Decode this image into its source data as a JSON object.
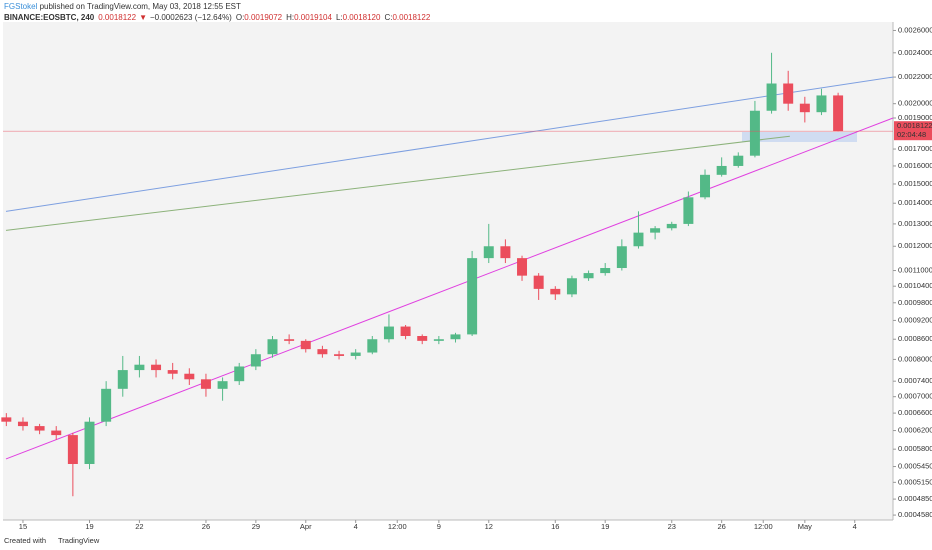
{
  "header": {
    "author": "FGStokel",
    "published": " published on TradingView.com, May 03, 2018 12:55 EST",
    "symbol": "BINANCE:EOSBTC, 240",
    "last": "0.0018122",
    "arrow": "▼",
    "change": "−0.0002623 (−12.64%)",
    "ohlc": [
      {
        "label": "O:",
        "value": "0.0019072"
      },
      {
        "label": "H:",
        "value": "0.0019104"
      },
      {
        "label": "L:",
        "value": "0.0018120"
      },
      {
        "label": "C:",
        "value": "0.0018122"
      }
    ]
  },
  "chart_data": {
    "type": "candlestick",
    "log_scale": true,
    "grid": false,
    "up_color": "#53b987",
    "down_color": "#eb4d5c",
    "x": [
      -1,
      0,
      1,
      2,
      3,
      4,
      5,
      6,
      7,
      8,
      9,
      10,
      11,
      12,
      13,
      14,
      15,
      16,
      17,
      18,
      19,
      20,
      21,
      22,
      23,
      24,
      25,
      26,
      27,
      28,
      29,
      30,
      31,
      32,
      33,
      34,
      35,
      36,
      37,
      38,
      39,
      40,
      41,
      42,
      43,
      44,
      45,
      46,
      47,
      48,
      49
    ],
    "candles": [
      [
        0.00065,
        0.00066,
        0.00063,
        0.00064
      ],
      [
        0.00064,
        0.00065,
        0.00062,
        0.00063
      ],
      [
        0.00063,
        0.000635,
        0.000612,
        0.00062
      ],
      [
        0.00062,
        0.00063,
        0.0006,
        0.00061
      ],
      [
        0.00061,
        0.000615,
        0.00049,
        0.00055
      ],
      [
        0.00055,
        0.00065,
        0.00054,
        0.00064
      ],
      [
        0.00064,
        0.00074,
        0.00063,
        0.00072
      ],
      [
        0.00072,
        0.00081,
        0.0007,
        0.00077
      ],
      [
        0.00077,
        0.00081,
        0.00075,
        0.000785
      ],
      [
        0.000785,
        0.0008,
        0.00075,
        0.00077
      ],
      [
        0.00077,
        0.00079,
        0.000745,
        0.00076
      ],
      [
        0.00076,
        0.000775,
        0.00073,
        0.000745
      ],
      [
        0.000745,
        0.00076,
        0.0007,
        0.00072
      ],
      [
        0.00072,
        0.00075,
        0.00069,
        0.00074
      ],
      [
        0.00074,
        0.00079,
        0.00073,
        0.00078
      ],
      [
        0.00078,
        0.00083,
        0.00077,
        0.000815
      ],
      [
        0.000815,
        0.00087,
        0.000805,
        0.00086
      ],
      [
        0.00086,
        0.000875,
        0.000845,
        0.000855
      ],
      [
        0.000855,
        0.00086,
        0.00082,
        0.00083
      ],
      [
        0.00083,
        0.00084,
        0.000805,
        0.000815
      ],
      [
        0.000815,
        0.000825,
        0.0008,
        0.00081
      ],
      [
        0.00081,
        0.00083,
        0.0008,
        0.00082
      ],
      [
        0.00082,
        0.00087,
        0.000815,
        0.00086
      ],
      [
        0.00086,
        0.00094,
        0.00085,
        0.0009
      ],
      [
        0.0009,
        0.000905,
        0.00086,
        0.00087
      ],
      [
        0.00087,
        0.000875,
        0.000845,
        0.000855
      ],
      [
        0.000855,
        0.00087,
        0.000845,
        0.00086
      ],
      [
        0.00086,
        0.00088,
        0.00085,
        0.000875
      ],
      [
        0.000875,
        0.00118,
        0.00087,
        0.00115
      ],
      [
        0.00115,
        0.0013,
        0.00113,
        0.0012
      ],
      [
        0.0012,
        0.00123,
        0.00113,
        0.00115
      ],
      [
        0.00115,
        0.00116,
        0.00106,
        0.00108
      ],
      [
        0.00108,
        0.00109,
        0.00099,
        0.00103
      ],
      [
        0.00103,
        0.00104,
        0.00099,
        0.00101
      ],
      [
        0.00101,
        0.00108,
        0.001,
        0.00107
      ],
      [
        0.00107,
        0.0011,
        0.00106,
        0.00109
      ],
      [
        0.00109,
        0.00113,
        0.00108,
        0.00111
      ],
      [
        0.00111,
        0.00123,
        0.0011,
        0.0012
      ],
      [
        0.0012,
        0.00136,
        0.00119,
        0.00126
      ],
      [
        0.00126,
        0.00129,
        0.00123,
        0.00128
      ],
      [
        0.00128,
        0.00131,
        0.00127,
        0.0013
      ],
      [
        0.0013,
        0.00146,
        0.00129,
        0.00143
      ],
      [
        0.00143,
        0.00158,
        0.00142,
        0.00155
      ],
      [
        0.00155,
        0.00165,
        0.00154,
        0.0016
      ],
      [
        0.0016,
        0.00168,
        0.00159,
        0.00166
      ],
      [
        0.00166,
        0.00202,
        0.00165,
        0.00195
      ],
      [
        0.00195,
        0.0024,
        0.00193,
        0.00215
      ],
      [
        0.00215,
        0.00225,
        0.00195,
        0.002
      ],
      [
        0.002,
        0.00205,
        0.00187,
        0.00194
      ],
      [
        0.00194,
        0.00211,
        0.00192,
        0.00206
      ],
      [
        0.00206,
        0.00208,
        0.00181,
        0.0018122
      ]
    ],
    "last_price": 0.0018122,
    "last_color": "#eb4d5c",
    "countdown": "02:04:48",
    "trend_lines": [
      {
        "color": "#7d9fe0",
        "points": [
          [
            -1.02,
            0.00136
          ],
          [
            52.3,
            0.0022
          ]
        ]
      },
      {
        "color": "#8cb27a",
        "points": [
          [
            -1.02,
            0.00127
          ],
          [
            46.1,
            0.00178
          ]
        ]
      },
      {
        "color": "#e040e0",
        "points": [
          [
            -1.02,
            0.00056
          ],
          [
            52.3,
            0.0019
          ]
        ]
      }
    ],
    "xlim": [
      -1.2,
      52.3
    ],
    "ylim": [
      0.00045,
      0.00268
    ],
    "xticks": [
      {
        "value": 0,
        "label": "15"
      },
      {
        "value": 4,
        "label": "19"
      },
      {
        "value": 7,
        "label": "22"
      },
      {
        "value": 11,
        "label": "26"
      },
      {
        "value": 14,
        "label": "29"
      },
      {
        "value": 17,
        "label": "Apr"
      },
      {
        "value": 20,
        "label": "4"
      },
      {
        "value": 22.5,
        "label": "12:00"
      },
      {
        "value": 25,
        "label": "9"
      },
      {
        "value": 28,
        "label": "12"
      },
      {
        "value": 32,
        "label": "16"
      },
      {
        "value": 35,
        "label": "19"
      },
      {
        "value": 39,
        "label": "23"
      },
      {
        "value": 42,
        "label": "26"
      },
      {
        "value": 44.5,
        "label": "12:00"
      },
      {
        "value": 47,
        "label": "May"
      },
      {
        "value": 50,
        "label": "4"
      }
    ],
    "yticks": [
      {
        "value": 0.0026,
        "label": "0.0026000"
      },
      {
        "value": 0.0024,
        "label": "0.0024000"
      },
      {
        "value": 0.0022,
        "label": "0.0022000"
      },
      {
        "value": 0.002,
        "label": "0.0020000"
      },
      {
        "value": 0.0019,
        "label": "0.0019000"
      },
      {
        "value": 0.0017,
        "label": "0.0017000"
      },
      {
        "value": 0.0016,
        "label": "0.0016000"
      },
      {
        "value": 0.0015,
        "label": "0.0015000"
      },
      {
        "value": 0.0014,
        "label": "0.0014000"
      },
      {
        "value": 0.0013,
        "label": "0.0013000"
      },
      {
        "value": 0.0012,
        "label": "0.0012000"
      },
      {
        "value": 0.0011,
        "label": "0.0011000"
      },
      {
        "value": 0.00104,
        "label": "0.0010400"
      },
      {
        "value": 0.00098,
        "label": "0.0009800"
      },
      {
        "value": 0.00092,
        "label": "0.0009200"
      },
      {
        "value": 0.00086,
        "label": "0.0008600"
      },
      {
        "value": 0.0008,
        "label": "0.0008000"
      },
      {
        "value": 0.00074,
        "label": "0.0007400"
      },
      {
        "value": 0.0007,
        "label": "0.0007000"
      },
      {
        "value": 0.00066,
        "label": "0.0006600"
      },
      {
        "value": 0.00062,
        "label": "0.0006200"
      },
      {
        "value": 0.00058,
        "label": "0.0005800"
      },
      {
        "value": 0.000545,
        "label": "0.0005450"
      },
      {
        "value": 0.000515,
        "label": "0.0005150"
      },
      {
        "value": 0.000485,
        "label": "0.0004850"
      },
      {
        "value": 0.000458,
        "label": "0.0004580"
      }
    ]
  },
  "footer": {
    "created": "Created with",
    "brand": "TradingView"
  }
}
